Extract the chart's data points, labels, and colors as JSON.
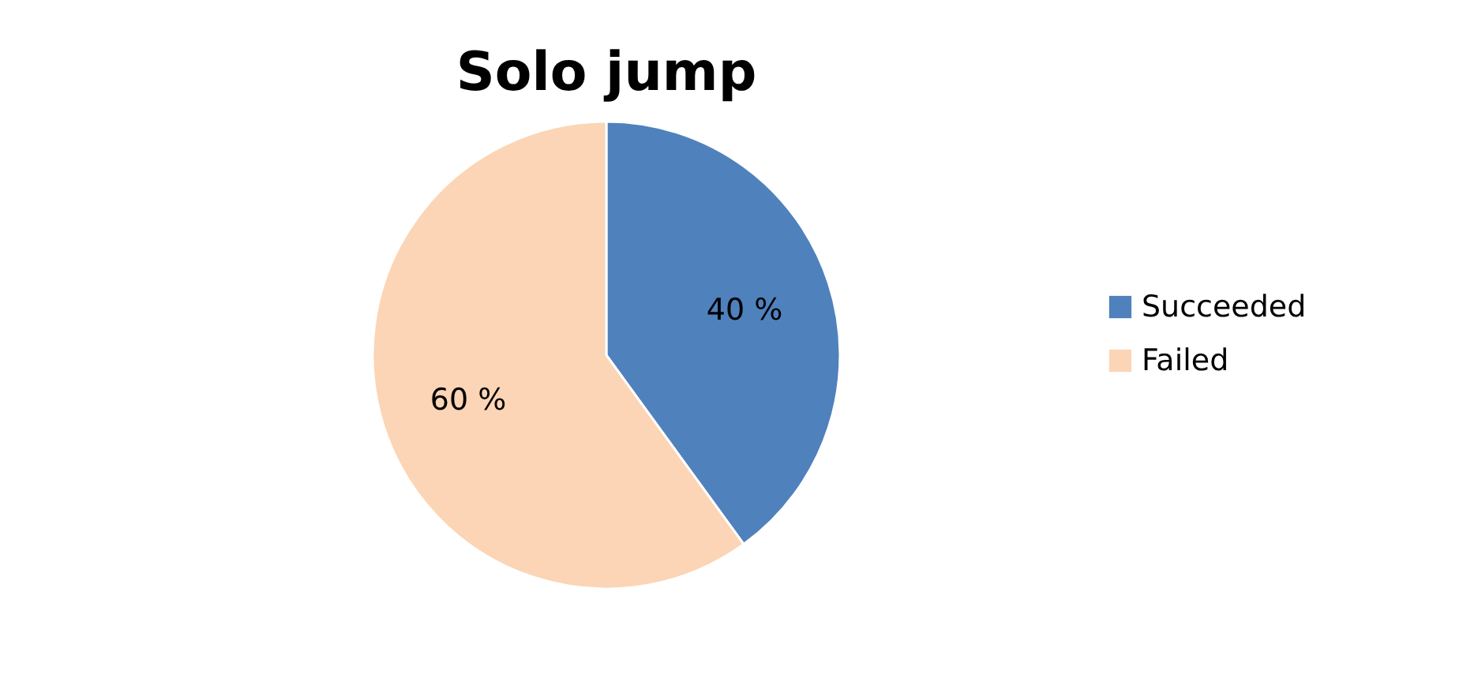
{
  "chart_data": {
    "type": "pie",
    "title": "Solo jump",
    "categories": [
      "Succeeded",
      "Failed"
    ],
    "values": [
      40,
      60
    ],
    "colors": [
      "#4f81bd",
      "#fbd5b5"
    ],
    "value_labels": [
      "40 %",
      "60 %"
    ],
    "legend": "right"
  }
}
